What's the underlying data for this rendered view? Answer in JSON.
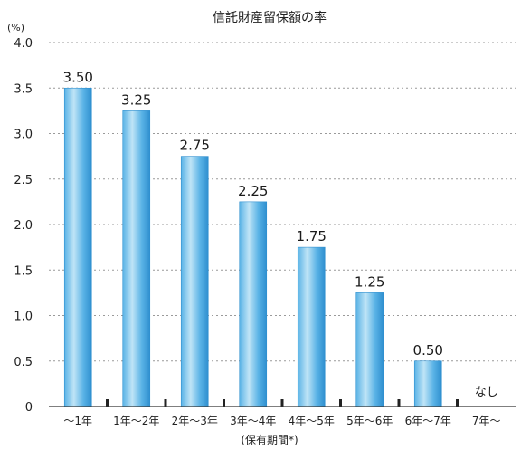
{
  "chart_data": {
    "type": "bar",
    "title": "信託財産留保額の率",
    "unit": "(%)",
    "xlabel": "(保有期間*)",
    "ylabel": "",
    "ylim": [
      0,
      4.0
    ],
    "yticks": [
      "0",
      "0.5",
      "1.0",
      "1.5",
      "2.0",
      "2.5",
      "3.0",
      "3.5",
      "4.0"
    ],
    "grid": true,
    "categories": [
      "～1年",
      "1年～2年",
      "2年～3年",
      "3年～4年",
      "4年～5年",
      "5年～6年",
      "6年～7年",
      "7年～"
    ],
    "values": [
      3.5,
      3.25,
      2.75,
      2.25,
      1.75,
      1.25,
      0.5,
      null
    ],
    "data_labels": [
      "3.50",
      "3.25",
      "2.75",
      "2.25",
      "1.75",
      "1.25",
      "0.50",
      "なし"
    ],
    "colors": {
      "bar_light": "#bfe4f6",
      "bar_mid": "#5ab3e6",
      "bar_dark": "#2f8fcf"
    }
  }
}
